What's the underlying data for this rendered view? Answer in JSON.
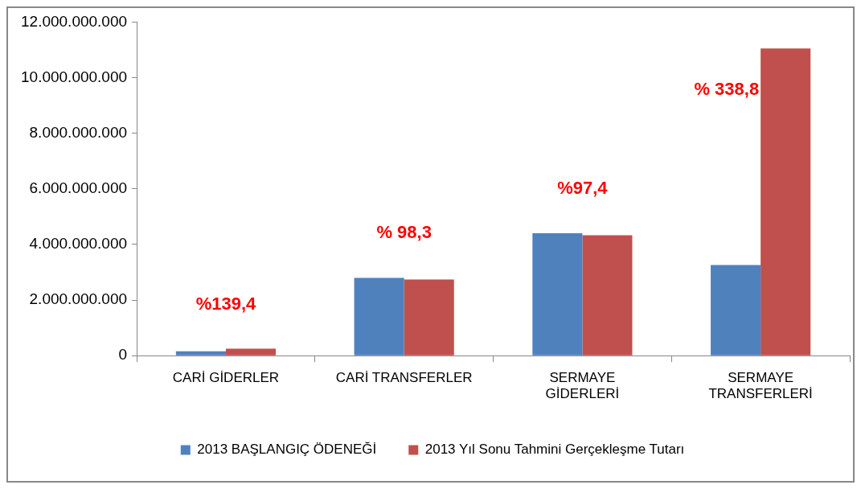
{
  "chart_data": {
    "type": "bar",
    "categories": [
      "CARİ GİDERLER",
      "CARİ TRANSFERLER",
      "SERMAYE\nGİDERLERİ",
      "SERMAYE\nTRANSFERLERİ"
    ],
    "series": [
      {
        "name": "2013 BAŞLANGIÇ ÖDENEĞİ",
        "color": "#4f81bd",
        "values": [
          160000000,
          2800000000,
          4400000000,
          3260000000
        ]
      },
      {
        "name": "2013 Yıl Sonu Tahmini Gerçekleşme Tutarı",
        "color": "#c0504d",
        "values": [
          250000000,
          2740000000,
          4330000000,
          11050000000
        ]
      }
    ],
    "ylim": [
      0,
      12000000000
    ],
    "yticks": [
      {
        "value": 0,
        "label": "0"
      },
      {
        "value": 2000000000,
        "label": "2.000.000.000"
      },
      {
        "value": 4000000000,
        "label": "4.000.000.000"
      },
      {
        "value": 6000000000,
        "label": "6.000.000.000"
      },
      {
        "value": 8000000000,
        "label": "8.000.000.000"
      },
      {
        "value": 10000000000,
        "label": "10.000.000.000"
      },
      {
        "value": 12000000000,
        "label": "12.000.000.000"
      }
    ],
    "annotations": [
      "%139,4",
      "% 98,3",
      "%97,4",
      "% 338,8"
    ],
    "grid": false,
    "legend": "bottom"
  }
}
